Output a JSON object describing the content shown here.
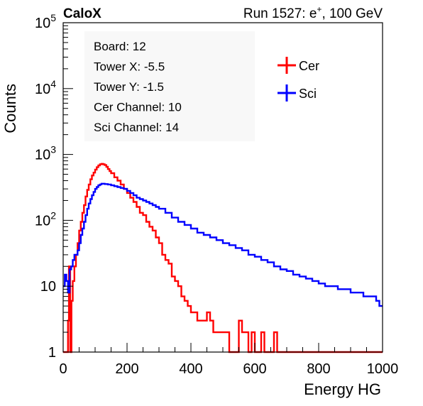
{
  "header": {
    "brand": "CaloX",
    "run_prefix": "Run 1527: e",
    "run_superscript": "+",
    "run_suffix": ", 100 GeV"
  },
  "info_box": {
    "lines": [
      "Board: 12",
      "Tower X: -5.5",
      "Tower Y: -1.5",
      "Cer Channel: 10",
      "Sci Channel: 14"
    ]
  },
  "chart_data": {
    "type": "line",
    "xlabel": "Energy HG",
    "ylabel": "Counts",
    "xlim": [
      0,
      1000
    ],
    "ylim": [
      1,
      100000
    ],
    "yscale": "log",
    "x_ticks": [
      0,
      200,
      400,
      600,
      800,
      1000
    ],
    "y_ticks": [
      {
        "value": 1,
        "base": "1",
        "exp": ""
      },
      {
        "value": 10,
        "base": "10",
        "exp": ""
      },
      {
        "value": 100,
        "base": "10",
        "exp": "2"
      },
      {
        "value": 1000,
        "base": "10",
        "exp": "3"
      },
      {
        "value": 10000,
        "base": "10",
        "exp": "4"
      },
      {
        "value": 100000,
        "base": "10",
        "exp": "5"
      }
    ],
    "grid": false,
    "legend_position": "top-right",
    "series": [
      {
        "name": "Cer",
        "color": "#ff0000",
        "x": [
          0,
          5,
          10,
          15,
          18,
          22,
          26,
          30,
          35,
          40,
          45,
          50,
          55,
          60,
          65,
          70,
          75,
          80,
          85,
          90,
          95,
          100,
          105,
          110,
          115,
          120,
          125,
          130,
          135,
          140,
          145,
          150,
          160,
          170,
          180,
          190,
          200,
          210,
          220,
          230,
          240,
          250,
          260,
          270,
          280,
          290,
          300,
          310,
          320,
          330,
          340,
          350,
          360,
          370,
          380,
          390,
          400,
          410,
          420,
          430,
          440,
          450,
          460,
          470,
          480,
          490,
          500,
          510,
          520,
          530,
          540,
          550,
          560,
          570,
          580,
          590,
          600,
          610,
          620,
          630,
          640,
          650,
          660,
          670,
          680,
          690,
          700,
          720,
          740,
          760,
          780,
          800,
          850,
          900,
          950,
          1000
        ],
        "y": [
          1,
          1,
          1,
          3,
          20,
          1,
          6,
          12,
          20,
          30,
          45,
          70,
          95,
          130,
          170,
          230,
          290,
          350,
          420,
          480,
          530,
          590,
          640,
          680,
          710,
          720,
          710,
          690,
          650,
          600,
          560,
          520,
          450,
          400,
          350,
          300,
          260,
          220,
          190,
          160,
          130,
          120,
          95,
          80,
          70,
          55,
          45,
          30,
          25,
          22,
          14,
          12,
          10,
          7,
          6,
          5,
          4,
          4,
          3,
          3,
          3,
          4,
          3,
          2,
          2,
          2,
          2,
          2,
          1,
          1,
          1,
          3,
          2,
          2,
          1,
          2,
          1,
          1,
          2,
          1,
          1,
          1,
          2,
          1,
          1,
          1,
          1,
          1,
          1,
          1,
          1,
          1,
          1,
          1,
          1,
          1
        ]
      },
      {
        "name": "Sci",
        "color": "#0000ff",
        "x": [
          0,
          5,
          10,
          15,
          20,
          25,
          30,
          35,
          40,
          45,
          50,
          55,
          60,
          65,
          70,
          75,
          80,
          85,
          90,
          95,
          100,
          105,
          110,
          115,
          120,
          125,
          130,
          140,
          150,
          160,
          170,
          180,
          190,
          200,
          210,
          220,
          230,
          240,
          250,
          260,
          270,
          280,
          290,
          300,
          320,
          340,
          360,
          380,
          400,
          420,
          440,
          460,
          480,
          500,
          520,
          540,
          560,
          580,
          600,
          620,
          640,
          660,
          680,
          700,
          720,
          740,
          760,
          780,
          800,
          820,
          840,
          860,
          880,
          900,
          920,
          940,
          960,
          980,
          990,
          1000
        ],
        "y": [
          10,
          15,
          12,
          8,
          18,
          20,
          25,
          30,
          30,
          35,
          45,
          60,
          75,
          95,
          120,
          150,
          180,
          210,
          240,
          270,
          300,
          320,
          340,
          350,
          360,
          360,
          355,
          350,
          340,
          330,
          320,
          310,
          300,
          280,
          260,
          240,
          220,
          210,
          200,
          190,
          180,
          170,
          160,
          150,
          130,
          110,
          95,
          85,
          75,
          65,
          60,
          55,
          50,
          45,
          42,
          38,
          35,
          30,
          28,
          25,
          23,
          20,
          18,
          17,
          15,
          14,
          13,
          12,
          11,
          10,
          10,
          9,
          9,
          8,
          8,
          7,
          7,
          6,
          5,
          5
        ]
      }
    ]
  }
}
